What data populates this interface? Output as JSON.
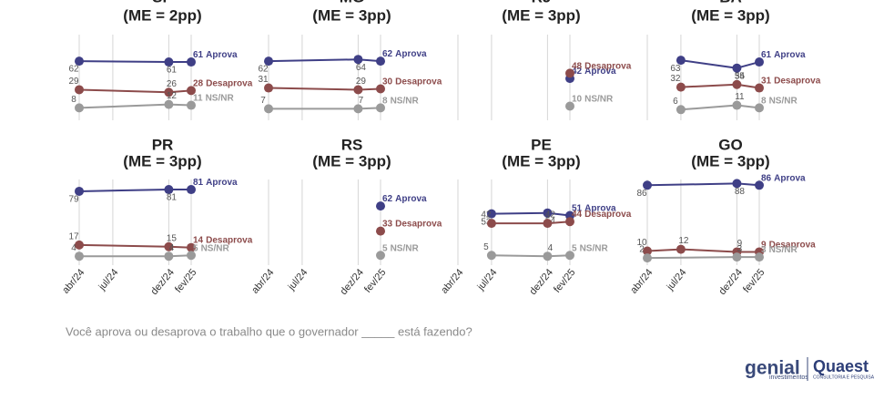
{
  "chart_data": [
    {
      "type": "line",
      "title": "SP",
      "subtitle": "(ME = 2pp)",
      "ylim": [
        0,
        100
      ],
      "series": [
        {
          "name": "Aprova",
          "color": "#3f3f86",
          "values": [
            62,
            null,
            null,
            null,
            null,
            null,
            null,
            null,
            61,
            null,
            61
          ]
        },
        {
          "name": "Desaprova",
          "color": "#8c4b4b",
          "values": [
            29,
            null,
            null,
            null,
            null,
            null,
            null,
            null,
            26,
            null,
            28
          ]
        },
        {
          "name": "NS/NR",
          "color": "#9a9a9a",
          "values": [
            8,
            null,
            null,
            null,
            null,
            null,
            null,
            null,
            12,
            null,
            11
          ]
        }
      ]
    },
    {
      "type": "line",
      "title": "MG",
      "subtitle": "(ME = 3pp)",
      "ylim": [
        0,
        100
      ],
      "series": [
        {
          "name": "Aprova",
          "color": "#3f3f86",
          "values": [
            62,
            null,
            null,
            null,
            null,
            null,
            null,
            null,
            64,
            null,
            62
          ]
        },
        {
          "name": "Desaprova",
          "color": "#8c4b4b",
          "values": [
            31,
            null,
            null,
            null,
            null,
            null,
            null,
            null,
            29,
            null,
            30
          ]
        },
        {
          "name": "NS/NR",
          "color": "#9a9a9a",
          "values": [
            7,
            null,
            null,
            null,
            null,
            null,
            null,
            null,
            7,
            null,
            8
          ]
        }
      ]
    },
    {
      "type": "line",
      "title": "RJ",
      "subtitle": "(ME = 3pp)",
      "ylim": [
        0,
        100
      ],
      "series": [
        {
          "name": "Aprova",
          "color": "#3f3f86",
          "values": [
            null,
            null,
            null,
            null,
            null,
            null,
            null,
            null,
            null,
            null,
            42
          ]
        },
        {
          "name": "Desaprova",
          "color": "#8c4b4b",
          "values": [
            null,
            null,
            null,
            null,
            null,
            null,
            null,
            null,
            null,
            null,
            48
          ]
        },
        {
          "name": "NS/NR",
          "color": "#9a9a9a",
          "values": [
            null,
            null,
            null,
            null,
            null,
            null,
            null,
            null,
            null,
            null,
            10
          ]
        }
      ]
    },
    {
      "type": "line",
      "title": "BA",
      "subtitle": "(ME = 3pp)",
      "ylim": [
        0,
        100
      ],
      "series": [
        {
          "name": "Aprova",
          "color": "#3f3f86",
          "values": [
            null,
            null,
            null,
            63,
            null,
            null,
            null,
            null,
            54,
            null,
            61
          ]
        },
        {
          "name": "Desaprova",
          "color": "#8c4b4b",
          "values": [
            null,
            null,
            null,
            32,
            null,
            null,
            null,
            null,
            35,
            null,
            31
          ]
        },
        {
          "name": "NS/NR",
          "color": "#9a9a9a",
          "values": [
            null,
            null,
            null,
            6,
            null,
            null,
            null,
            null,
            11,
            null,
            8
          ]
        }
      ]
    },
    {
      "type": "line",
      "title": "PR",
      "subtitle": "(ME = 3pp)",
      "ylim": [
        0,
        100
      ],
      "categories": [
        "abr/24",
        null,
        null,
        "jul/24",
        null,
        null,
        null,
        null,
        "dez/24",
        null,
        "fev/25"
      ],
      "series": [
        {
          "name": "Aprova",
          "color": "#3f3f86",
          "values": [
            79,
            null,
            null,
            null,
            null,
            null,
            null,
            null,
            81,
            null,
            81
          ]
        },
        {
          "name": "Desaprova",
          "color": "#8c4b4b",
          "values": [
            17,
            null,
            null,
            null,
            null,
            null,
            null,
            null,
            15,
            null,
            14
          ]
        },
        {
          "name": "NS/NR",
          "color": "#9a9a9a",
          "values": [
            4,
            null,
            null,
            null,
            null,
            null,
            null,
            null,
            4,
            null,
            5
          ]
        }
      ]
    },
    {
      "type": "line",
      "title": "RS",
      "subtitle": "(ME = 3pp)",
      "ylim": [
        0,
        100
      ],
      "categories": [
        "abr/24",
        null,
        null,
        "jul/24",
        null,
        null,
        null,
        null,
        "dez/24",
        null,
        "fev/25"
      ],
      "series": [
        {
          "name": "Aprova",
          "color": "#3f3f86",
          "values": [
            null,
            null,
            null,
            null,
            null,
            null,
            null,
            null,
            null,
            null,
            62
          ]
        },
        {
          "name": "Desaprova",
          "color": "#8c4b4b",
          "values": [
            null,
            null,
            null,
            null,
            null,
            null,
            null,
            null,
            null,
            null,
            33
          ]
        },
        {
          "name": "NS/NR",
          "color": "#9a9a9a",
          "values": [
            null,
            null,
            null,
            null,
            null,
            null,
            null,
            null,
            null,
            null,
            5
          ]
        }
      ]
    },
    {
      "type": "line",
      "title": "PE",
      "subtitle": "(ME = 3pp)",
      "ylim": [
        0,
        100
      ],
      "categories": [
        "abr/24",
        null,
        null,
        "jul/24",
        null,
        null,
        null,
        null,
        "dez/24",
        null,
        "fev/25"
      ],
      "series": [
        {
          "name": "Aprova",
          "color": "#3f3f86",
          "values": [
            null,
            null,
            null,
            53,
            null,
            null,
            null,
            null,
            54,
            null,
            51
          ]
        },
        {
          "name": "Desaprova",
          "color": "#8c4b4b",
          "values": [
            null,
            null,
            null,
            42,
            null,
            null,
            null,
            null,
            42,
            null,
            44
          ]
        },
        {
          "name": "NS/NR",
          "color": "#9a9a9a",
          "values": [
            null,
            null,
            null,
            5,
            null,
            null,
            null,
            null,
            4,
            null,
            5
          ]
        }
      ]
    },
    {
      "type": "line",
      "title": "GO",
      "subtitle": "(ME = 3pp)",
      "ylim": [
        0,
        100
      ],
      "categories": [
        "abr/24",
        null,
        null,
        "jul/24",
        null,
        null,
        null,
        null,
        "dez/24",
        null,
        "fev/25"
      ],
      "series": [
        {
          "name": "Aprova",
          "color": "#3f3f86",
          "values": [
            86,
            null,
            null,
            null,
            null,
            null,
            null,
            null,
            88,
            null,
            86
          ]
        },
        {
          "name": "Desaprova",
          "color": "#8c4b4b",
          "values": [
            10,
            null,
            null,
            12,
            null,
            null,
            null,
            null,
            9,
            null,
            9
          ]
        },
        {
          "name": "NS/NR",
          "color": "#9a9a9a",
          "values": [
            2,
            null,
            null,
            null,
            null,
            null,
            null,
            null,
            3,
            null,
            3
          ]
        }
      ]
    }
  ],
  "question": "Você aprova ou desaprova o trabalho que o governador _____ está fazendo?",
  "logos": {
    "genial": "genial",
    "genial_sub": "investimentos",
    "quaest": "Quaest",
    "quaest_sub": "CONSULTORIA E PESQUISA"
  }
}
